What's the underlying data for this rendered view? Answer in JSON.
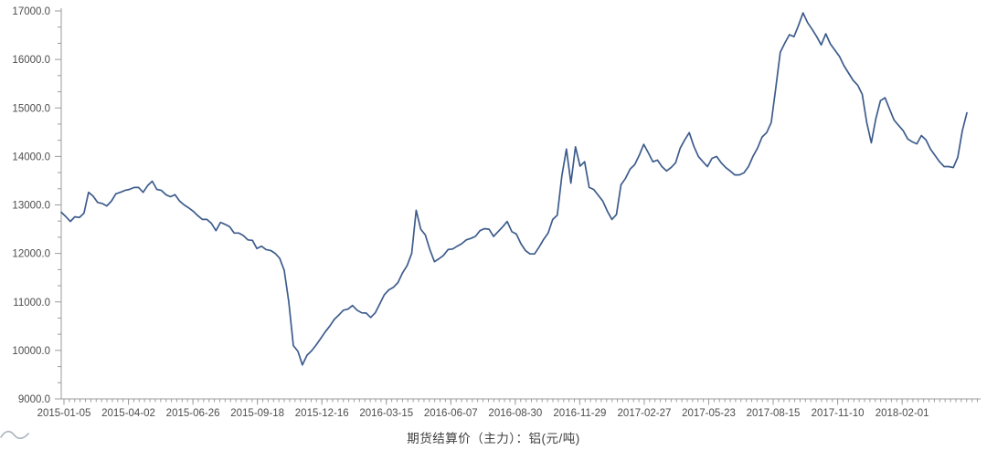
{
  "chart_data": {
    "type": "line",
    "title": "",
    "legend_position": "bottom-center",
    "grid": false,
    "x_axis": {
      "tick_labels": [
        "2015-01-05",
        "2015-04-02",
        "2015-06-26",
        "2015-09-18",
        "2015-12-16",
        "2016-03-15",
        "2016-06-07",
        "2016-08-30",
        "2016-11-29",
        "2017-02-27",
        "2017-05-23",
        "2017-08-15",
        "2017-11-10",
        "2018-02-01"
      ],
      "minor_ticks_between_majors": 11
    },
    "y_axis": {
      "min": 9000,
      "max": 17000,
      "major_step": 1000,
      "minor_divisions_per_major": 3,
      "tick_labels": [
        "9000.0",
        "10000.0",
        "11000.0",
        "12000.0",
        "13000.0",
        "14000.0",
        "15000.0",
        "16000.0",
        "17000.0"
      ]
    },
    "ylim": [
      9000,
      17000
    ],
    "series": [
      {
        "name": "期货结算价（主力）：铝",
        "unit": "元/吨",
        "color": "#3d5c8c",
        "values": [
          12850,
          12760,
          12660,
          12755,
          12740,
          12830,
          13260,
          13180,
          13050,
          13030,
          12980,
          13075,
          13230,
          13260,
          13300,
          13320,
          13360,
          13360,
          13260,
          13400,
          13490,
          13320,
          13300,
          13210,
          13170,
          13210,
          13080,
          13000,
          12940,
          12870,
          12780,
          12700,
          12700,
          12620,
          12470,
          12640,
          12600,
          12550,
          12420,
          12420,
          12370,
          12280,
          12270,
          12100,
          12150,
          12080,
          12060,
          12000,
          11900,
          11650,
          11000,
          10100,
          9980,
          9700,
          9900,
          9990,
          10110,
          10245,
          10380,
          10500,
          10640,
          10730,
          10830,
          10850,
          10925,
          10830,
          10775,
          10770,
          10680,
          10775,
          10960,
          11150,
          11250,
          11300,
          11400,
          11600,
          11750,
          12000,
          12890,
          12500,
          12380,
          12075,
          11830,
          11890,
          11960,
          12080,
          12090,
          12150,
          12200,
          12280,
          12310,
          12350,
          12470,
          12510,
          12500,
          12350,
          12450,
          12550,
          12660,
          12450,
          12400,
          12200,
          12060,
          11990,
          11990,
          12130,
          12290,
          12420,
          12700,
          12790,
          13600,
          14150,
          13450,
          14200,
          13800,
          13890,
          13360,
          13320,
          13200,
          13080,
          12870,
          12700,
          12800,
          13415,
          13550,
          13740,
          13830,
          14020,
          14250,
          14075,
          13890,
          13925,
          13790,
          13700,
          13770,
          13870,
          14170,
          14340,
          14490,
          14210,
          14000,
          13890,
          13790,
          13960,
          14000,
          13870,
          13770,
          13700,
          13620,
          13620,
          13660,
          13790,
          14000,
          14170,
          14400,
          14490,
          14700,
          15400,
          16150,
          16340,
          16510,
          16470,
          16700,
          16960,
          16760,
          16620,
          16470,
          16300,
          16530,
          16320,
          16190,
          16060,
          15870,
          15720,
          15570,
          15470,
          15280,
          14700,
          14280,
          14780,
          15150,
          15210,
          14980,
          14750,
          14640,
          14530,
          14360,
          14300,
          14260,
          14430,
          14340,
          14150,
          14020,
          13890,
          13790,
          13790,
          13770,
          13980,
          14530,
          14900
        ]
      }
    ]
  },
  "legend": {
    "label": "期货结算价（主力）：铝(元/吨)",
    "icon": "wave-line-icon",
    "icon_color": "#a8b2bd"
  },
  "style": {
    "line_color": "#3d5c8c",
    "axis_color": "#9b9b9b",
    "tick_label_color": "#4d4d4d",
    "background_color": "#ffffff"
  }
}
